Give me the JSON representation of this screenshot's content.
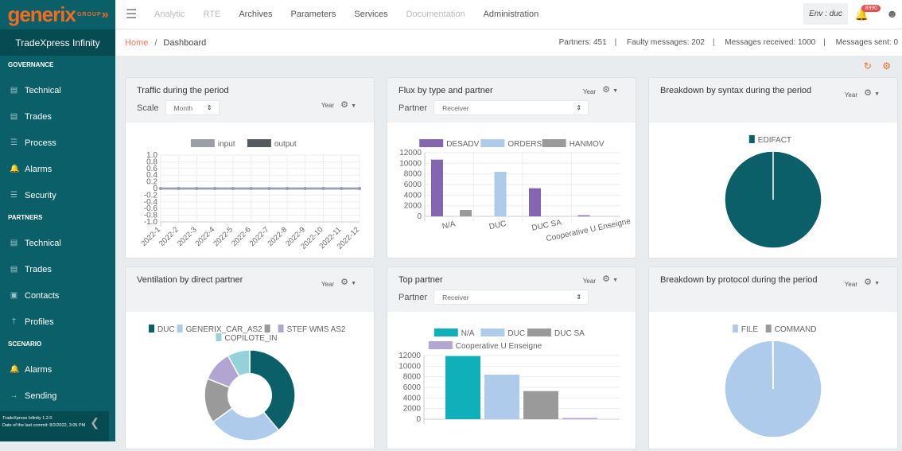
{
  "brand": {
    "logo": "generix",
    "logo_sub": "GROUP",
    "product": "TradeXpress Infinity"
  },
  "sidebar": {
    "sections": [
      {
        "title": "GOVERNANCE",
        "items": [
          {
            "label": "Technical",
            "icon": "document-code-icon"
          },
          {
            "label": "Trades",
            "icon": "document-icon"
          },
          {
            "label": "Process",
            "icon": "list-icon"
          },
          {
            "label": "Alarms",
            "icon": "bell-icon"
          },
          {
            "label": "Security",
            "icon": "list-icon"
          }
        ]
      },
      {
        "title": "PARTNERS",
        "items": [
          {
            "label": "Technical",
            "icon": "document-icon"
          },
          {
            "label": "Trades",
            "icon": "document-icon"
          },
          {
            "label": "Contacts",
            "icon": "contact-icon"
          },
          {
            "label": "Profiles",
            "icon": "person-icon"
          }
        ]
      },
      {
        "title": "SCENARIO",
        "items": [
          {
            "label": "Alarms",
            "icon": "bell-icon"
          },
          {
            "label": "Sending",
            "icon": "arrow-right-icon"
          }
        ]
      }
    ],
    "footer": {
      "version": "TradeXpress Infinity 1.2.0",
      "commit": "Date of the last commit: 8/2/2022, 3:05 PM"
    }
  },
  "topnav": {
    "items": [
      {
        "label": "Analytic",
        "disabled": true
      },
      {
        "label": "RTE",
        "disabled": true
      },
      {
        "label": "Archives"
      },
      {
        "label": "Parameters"
      },
      {
        "label": "Services"
      },
      {
        "label": "Documentation",
        "disabled": true
      },
      {
        "label": "Administration"
      }
    ],
    "env": "Env : duc",
    "notifications": "8990"
  },
  "breadcrumb": {
    "home": "Home",
    "current": "Dashboard"
  },
  "stats": [
    "Partners: 451",
    "Faulty messages: 202",
    "Messages received: 1000",
    "Messages sent: 0"
  ],
  "colors": {
    "sidebar": "#0b5f69",
    "accent": "#f26b21"
  },
  "cards": [
    {
      "title": "Traffic during the period",
      "period": "Year",
      "control_label": "Scale",
      "control_value": "Month"
    },
    {
      "title": "Flux by type and partner",
      "period": "Year",
      "control_label": "Partner",
      "control_value": "Receiver"
    },
    {
      "title": "Breakdown by syntax during the period",
      "period": "Year"
    },
    {
      "title": "Ventilation by direct partner",
      "period": "Year"
    },
    {
      "title": "Top partner",
      "period": "Year",
      "control_label": "Partner",
      "control_value": "Receiver"
    },
    {
      "title": "Breakdown by protocol during the period",
      "period": "Year"
    }
  ],
  "chart_data": [
    {
      "type": "line",
      "categories": [
        "2022-1",
        "2022-2",
        "2022-3",
        "2022-4",
        "2022-5",
        "2022-6",
        "2022-7",
        "2022-8",
        "2022-9",
        "2022-10",
        "2022-11",
        "2022-12"
      ],
      "series": [
        {
          "name": "input",
          "color": "#9aa0a6",
          "values": [
            0,
            0,
            0,
            0,
            0,
            0,
            0,
            0,
            0,
            0,
            0,
            0
          ]
        },
        {
          "name": "output",
          "color": "#555a5e",
          "values": [
            0,
            0,
            0,
            0,
            0,
            0,
            0,
            0,
            0,
            0,
            0,
            0
          ]
        }
      ],
      "ylim": [
        -1,
        1
      ],
      "yticks": [
        "1.0",
        "0.8",
        "0.6",
        "0.4",
        "0.2",
        "0",
        "-0.2",
        "-0.4",
        "-0.6",
        "-0.8",
        "-1.0"
      ],
      "legend": "top",
      "grid": true
    },
    {
      "type": "bar",
      "categories": [
        "N/A",
        "DUC",
        "DUC SA",
        "Cooperative U Enseigne"
      ],
      "series": [
        {
          "name": "DESADV",
          "color": "#8466b0",
          "values": [
            10700,
            0,
            5300,
            200
          ]
        },
        {
          "name": "ORDERS",
          "color": "#aecbeb",
          "values": [
            0,
            8400,
            0,
            0
          ]
        },
        {
          "name": "HANMOV",
          "color": "#9a9a9a",
          "values": [
            1200,
            0,
            0,
            0
          ]
        }
      ],
      "ylim": [
        0,
        12000
      ],
      "yticks": [
        "12000",
        "10000",
        "8000",
        "6000",
        "4000",
        "2000",
        "0"
      ],
      "legend": "top",
      "grid": true
    },
    {
      "type": "pie",
      "categories": [
        "EDIFACT"
      ],
      "values": [
        100
      ],
      "colors": [
        "#0b5f69"
      ],
      "legend": "top"
    },
    {
      "type": "pie",
      "donut": true,
      "categories": [
        "DUC",
        "GENERIX_CAR_AS2",
        "",
        "STEF WMS AS2",
        "COPILOTE_IN"
      ],
      "values": [
        39,
        26,
        16,
        11,
        8
      ],
      "colors": [
        "#0b5f69",
        "#aecbeb",
        "#9a9a9a",
        "#b3a5d2",
        "#95d1d8"
      ],
      "legend": "top"
    },
    {
      "type": "bar",
      "categories": [
        "N/A",
        "DUC",
        "DUC SA",
        "Cooperative U Enseigne"
      ],
      "values": [
        11900,
        8400,
        5300,
        200
      ],
      "colors": [
        "#10b0bb",
        "#aecbeb",
        "#9a9a9a",
        "#b3a5d2"
      ],
      "ylim": [
        0,
        12000
      ],
      "yticks": [
        "12000",
        "10000",
        "8000",
        "6000",
        "4000",
        "2000",
        "0"
      ],
      "legend": "top"
    },
    {
      "type": "pie",
      "categories": [
        "FILE",
        "COMMAND"
      ],
      "values": [
        99.8,
        0.2
      ],
      "colors": [
        "#aecbeb",
        "#9a9a9a"
      ],
      "legend": "top"
    }
  ]
}
